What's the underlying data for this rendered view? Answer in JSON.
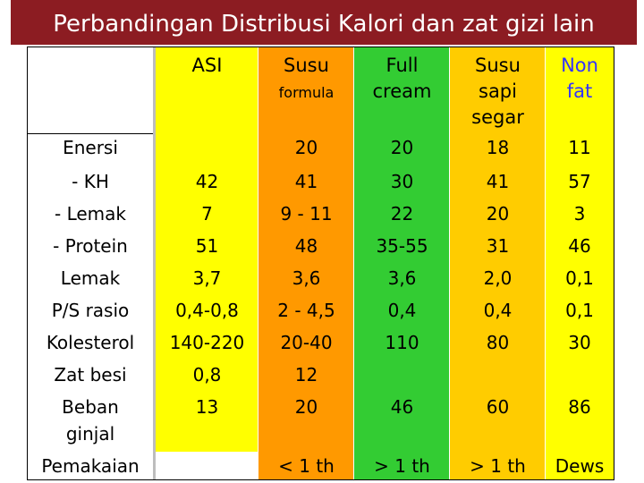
{
  "title": "Perbandingan Distribusi Kalori dan zat gizi lain",
  "colors": {
    "title_bg": "#8c1c22",
    "label_col": "#ffffff",
    "asi": "#ffff00",
    "susu_formula": "#ff9900",
    "full_cream": "#33cc33",
    "susu_sapi_segar": "#ffcc00",
    "non_fat": "#ffff00",
    "header_text_blue": "#3333ff",
    "header_text_black": "#000000"
  },
  "headers": {
    "asi": "ASI",
    "susu_formula_line1": "Susu",
    "susu_formula_line2": "formula",
    "full_cream_line1": "Full",
    "full_cream_line2": "cream",
    "susu_sapi_segar_line1": "Susu",
    "susu_sapi_segar_line2": "sapi",
    "susu_sapi_segar_line3": "segar",
    "non_fat_line1": "Non",
    "non_fat_line2": "fat"
  },
  "rows": {
    "energi": "Enersi",
    "kh": "- KH",
    "lemak_pct": "- Lemak",
    "protein": "- Protein",
    "lemak": "Lemak",
    "ps_rasio": "P/S rasio",
    "kolesterol": "Kolesterol",
    "zat_besi": "Zat besi",
    "beban_line1": "Beban",
    "beban_line2": "ginjal",
    "pemakaian": "Pemakaian"
  },
  "asi": {
    "energi": "",
    "kh": "42",
    "lemak_pct": "7",
    "protein": "51",
    "lemak": "3,7",
    "ps_rasio": "0,4-0,8",
    "kolesterol": "140-220",
    "zat_besi": "0,8",
    "beban": "13",
    "pemakaian": ""
  },
  "susu_formula": {
    "energi": "20",
    "kh": "41",
    "lemak_pct": "9 - 11",
    "protein": "48",
    "lemak": "3,6",
    "ps_rasio": "2 - 4,5",
    "kolesterol": "20-40",
    "zat_besi": "12",
    "beban": "20",
    "pemakaian": "< 1 th"
  },
  "full_cream": {
    "energi": "20",
    "kh": "30",
    "lemak_pct": "22",
    "protein": "35-55",
    "lemak": "3,6",
    "ps_rasio": "0,4",
    "kolesterol": "110",
    "zat_besi": "",
    "beban": "46",
    "pemakaian": "> 1 th"
  },
  "susu_sapi_segar": {
    "energi": "18",
    "kh": "41",
    "lemak_pct": "20",
    "protein": "31",
    "lemak": "2,0",
    "ps_rasio": "0,4",
    "kolesterol": "80",
    "zat_besi": "",
    "beban": "60",
    "pemakaian": "> 1 th"
  },
  "non_fat": {
    "energi": "11",
    "kh": "57",
    "lemak_pct": "3",
    "protein": "46",
    "lemak": "0,1",
    "ps_rasio": "0,1",
    "kolesterol": "30",
    "zat_besi": "",
    "beban": "86",
    "pemakaian": "Dews"
  }
}
